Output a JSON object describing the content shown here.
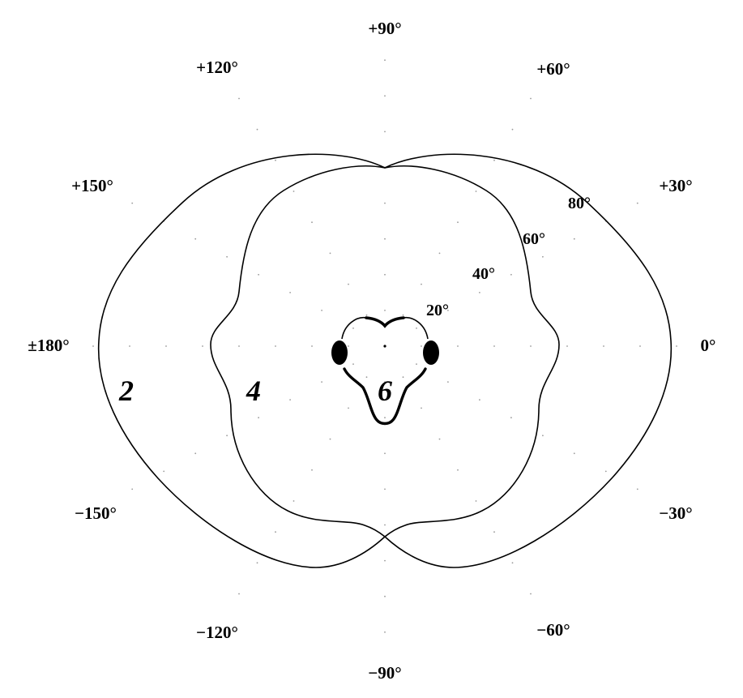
{
  "chart_data": {
    "type": "polar",
    "azimuth_labels": [
      {
        "angle": 90,
        "text": "+90°"
      },
      {
        "angle": 120,
        "text": "+120°"
      },
      {
        "angle": 60,
        "text": "+60°"
      },
      {
        "angle": 150,
        "text": "+150°"
      },
      {
        "angle": 30,
        "text": "+30°"
      },
      {
        "angle": 180,
        "text": "±180°"
      },
      {
        "angle": 0,
        "text": "0°"
      },
      {
        "angle": -150,
        "text": "−150°"
      },
      {
        "angle": -30,
        "text": "−30°"
      },
      {
        "angle": -120,
        "text": "−120°"
      },
      {
        "angle": -60,
        "text": "−60°"
      },
      {
        "angle": -90,
        "text": "−90°"
      }
    ],
    "elevation_labels": [
      {
        "value": 20,
        "text": "20°"
      },
      {
        "value": 40,
        "text": "40°"
      },
      {
        "value": 60,
        "text": "60°"
      },
      {
        "value": 80,
        "text": "80°"
      }
    ],
    "curves": [
      {
        "label": "2"
      },
      {
        "label": "4"
      },
      {
        "label": "6"
      }
    ]
  }
}
